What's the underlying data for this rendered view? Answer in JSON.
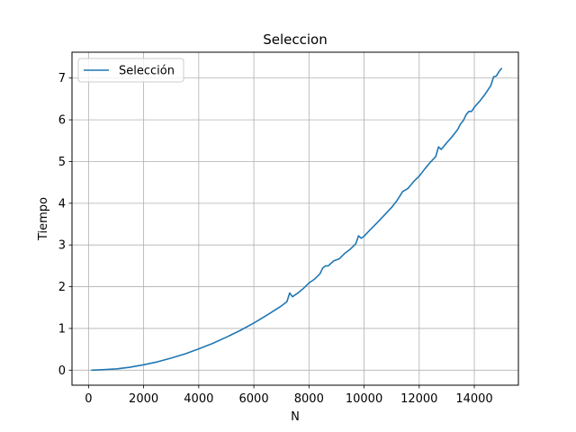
{
  "chart_data": {
    "type": "line",
    "title": "Seleccion",
    "xlabel": "N",
    "ylabel": "Tiempo",
    "xlim": [
      -600,
      15600
    ],
    "ylim": [
      -0.36,
      7.62
    ],
    "xticks": [
      0,
      2000,
      4000,
      6000,
      8000,
      10000,
      12000,
      14000
    ],
    "xtick_labels": [
      "0",
      "2000",
      "4000",
      "6000",
      "8000",
      "10000",
      "12000",
      "14000"
    ],
    "yticks": [
      0,
      1,
      2,
      3,
      4,
      5,
      6,
      7
    ],
    "ytick_labels": [
      "0",
      "1",
      "2",
      "3",
      "4",
      "5",
      "6",
      "7"
    ],
    "grid": true,
    "legend_position": "top-left",
    "series": [
      {
        "name": "Selección",
        "color": "#1f77b4",
        "points": [
          [
            100,
            0.0
          ],
          [
            500,
            0.01
          ],
          [
            1000,
            0.03
          ],
          [
            1500,
            0.07
          ],
          [
            2000,
            0.13
          ],
          [
            2500,
            0.2
          ],
          [
            3000,
            0.29
          ],
          [
            3500,
            0.39
          ],
          [
            4000,
            0.51
          ],
          [
            4500,
            0.64
          ],
          [
            5000,
            0.79
          ],
          [
            5500,
            0.95
          ],
          [
            6000,
            1.13
          ],
          [
            6500,
            1.33
          ],
          [
            7000,
            1.54
          ],
          [
            7200,
            1.64
          ],
          [
            7300,
            1.85
          ],
          [
            7400,
            1.76
          ],
          [
            7600,
            1.85
          ],
          [
            7800,
            1.96
          ],
          [
            8000,
            2.09
          ],
          [
            8200,
            2.18
          ],
          [
            8400,
            2.31
          ],
          [
            8500,
            2.45
          ],
          [
            8600,
            2.5
          ],
          [
            8700,
            2.5
          ],
          [
            8900,
            2.62
          ],
          [
            9100,
            2.67
          ],
          [
            9300,
            2.8
          ],
          [
            9500,
            2.9
          ],
          [
            9700,
            3.03
          ],
          [
            9800,
            3.22
          ],
          [
            9900,
            3.16
          ],
          [
            10000,
            3.21
          ],
          [
            10200,
            3.35
          ],
          [
            10500,
            3.55
          ],
          [
            10800,
            3.76
          ],
          [
            11000,
            3.9
          ],
          [
            11200,
            4.07
          ],
          [
            11400,
            4.28
          ],
          [
            11500,
            4.32
          ],
          [
            11600,
            4.36
          ],
          [
            11800,
            4.52
          ],
          [
            12000,
            4.65
          ],
          [
            12200,
            4.82
          ],
          [
            12400,
            4.98
          ],
          [
            12600,
            5.12
          ],
          [
            12700,
            5.35
          ],
          [
            12800,
            5.29
          ],
          [
            13000,
            5.45
          ],
          [
            13200,
            5.6
          ],
          [
            13400,
            5.77
          ],
          [
            13500,
            5.9
          ],
          [
            13600,
            5.98
          ],
          [
            13700,
            6.12
          ],
          [
            13800,
            6.2
          ],
          [
            13900,
            6.2
          ],
          [
            14000,
            6.3
          ],
          [
            14200,
            6.45
          ],
          [
            14400,
            6.62
          ],
          [
            14600,
            6.82
          ],
          [
            14700,
            7.03
          ],
          [
            14800,
            7.05
          ],
          [
            14900,
            7.16
          ],
          [
            15000,
            7.24
          ]
        ]
      }
    ]
  }
}
